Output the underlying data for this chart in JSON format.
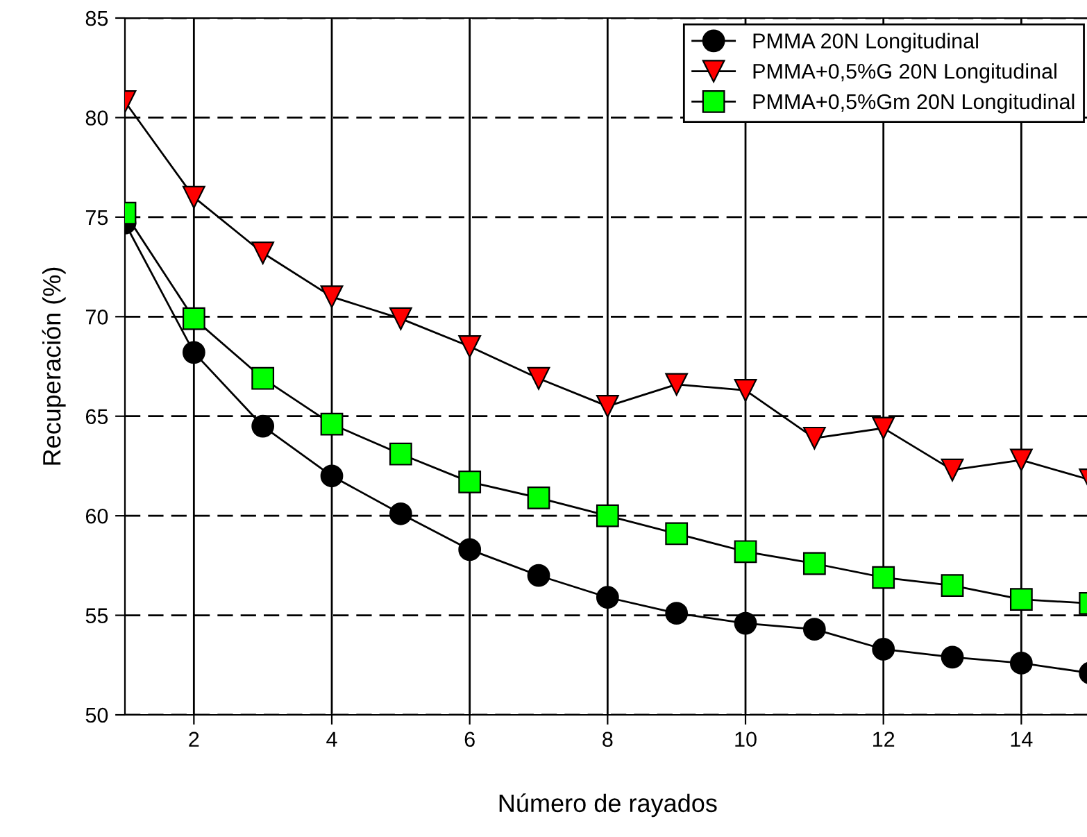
{
  "chart_data": {
    "type": "line",
    "xlabel": "Número de rayados",
    "ylabel": "Recuperación (%)",
    "x": [
      1,
      2,
      3,
      4,
      5,
      6,
      7,
      8,
      9,
      10,
      11,
      12,
      13,
      14,
      15
    ],
    "series": [
      {
        "name": "PMMA 20N Longitudinal",
        "color": "#000000",
        "marker": "circle",
        "values": [
          74.7,
          68.2,
          64.5,
          62.0,
          60.1,
          58.3,
          57.0,
          55.9,
          55.1,
          54.6,
          54.3,
          53.3,
          52.9,
          52.6,
          52.1
        ]
      },
      {
        "name": "PMMA+0,5%G 20N Longitudinal",
        "color": "#ff0000",
        "marker": "triangle",
        "values": [
          80.8,
          76.0,
          73.2,
          71.0,
          69.9,
          68.5,
          66.9,
          65.5,
          66.6,
          66.3,
          63.9,
          64.4,
          62.3,
          62.8,
          61.8
        ]
      },
      {
        "name": "PMMA+0,5%Gm 20N Longitudinal",
        "color": "#00ff00",
        "marker": "square",
        "values": [
          75.2,
          69.9,
          66.9,
          64.6,
          63.1,
          61.7,
          60.9,
          60.0,
          59.1,
          58.2,
          57.6,
          56.9,
          56.5,
          55.8,
          55.6
        ]
      }
    ],
    "xlim": [
      1,
      15
    ],
    "ylim": [
      50,
      85
    ],
    "xticks": [
      2,
      4,
      6,
      8,
      10,
      12,
      14
    ],
    "yticks": [
      50,
      55,
      60,
      65,
      70,
      75,
      80,
      85
    ],
    "grid": true,
    "legend": "top right",
    "line_style": "solid"
  }
}
